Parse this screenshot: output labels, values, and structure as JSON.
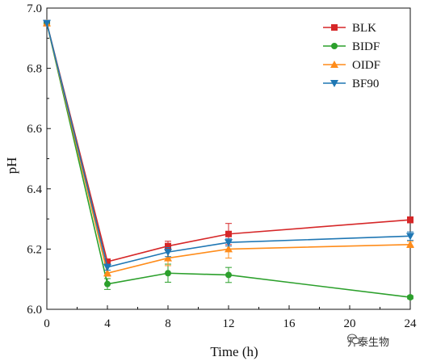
{
  "chart_data": {
    "type": "line",
    "xlabel": "Time (h)",
    "ylabel": "pH",
    "xlim": [
      0,
      24
    ],
    "ylim": [
      6.0,
      7.0
    ],
    "xticks": [
      0,
      4,
      8,
      12,
      16,
      20,
      24
    ],
    "xtick_labels": [
      "0",
      "4",
      "8",
      "12",
      "16",
      "20",
      "24"
    ],
    "yticks": [
      6.0,
      6.2,
      6.4,
      6.6,
      6.8,
      7.0
    ],
    "ytick_labels": [
      "6.0",
      "6.2",
      "6.4",
      "6.6",
      "6.8",
      "7.0"
    ],
    "x": [
      0,
      4,
      8,
      12,
      24
    ],
    "legend_position": "top-right",
    "grid": false,
    "series": [
      {
        "name": "BLK",
        "color": "#d62728",
        "marker": "square",
        "values": [
          6.95,
          6.158,
          6.21,
          6.25,
          6.297
        ],
        "errors": [
          0,
          0.006,
          0.016,
          0.035,
          0.01
        ]
      },
      {
        "name": "BIDF",
        "color": "#2ca02c",
        "marker": "circle",
        "values": [
          6.95,
          6.084,
          6.12,
          6.114,
          6.04
        ],
        "errors": [
          0,
          0.018,
          0.03,
          0.025,
          0.005
        ]
      },
      {
        "name": "OIDF",
        "color": "#ff8c1a",
        "marker": "triangle-up",
        "values": [
          6.95,
          6.12,
          6.17,
          6.2,
          6.215
        ],
        "errors": [
          0,
          0.01,
          0.025,
          0.03,
          0.01
        ]
      },
      {
        "name": "BF90",
        "color": "#1f77b4",
        "marker": "triangle-down",
        "values": [
          6.95,
          6.14,
          6.19,
          6.222,
          6.243
        ],
        "errors": [
          0,
          0.01,
          0.015,
          0.012,
          0.014
        ]
      }
    ]
  },
  "watermark": {
    "text": "开泰生物",
    "icon": "wechat-icon"
  }
}
